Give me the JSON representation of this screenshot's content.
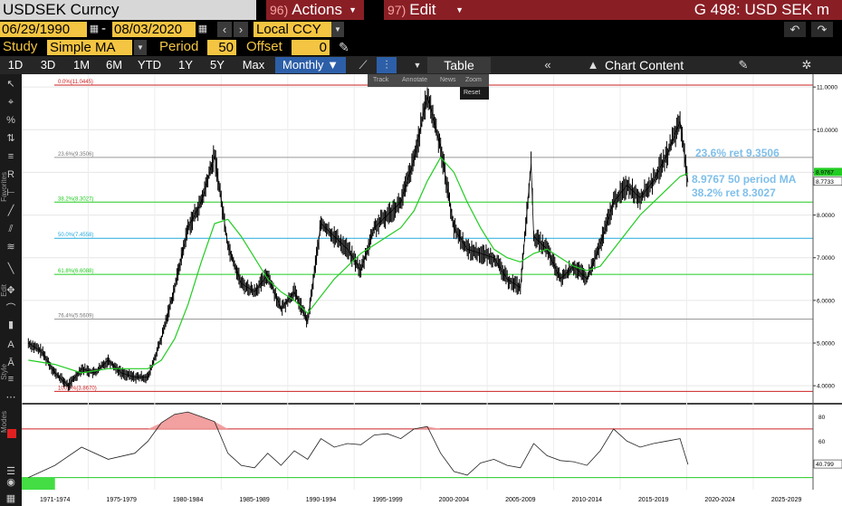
{
  "header": {
    "ticker": "USDSEK Curncy",
    "actions_num": "96)",
    "actions_label": "Actions",
    "edit_num": "97)",
    "edit_label": "Edit",
    "function_title": "G 498: USD SEK m"
  },
  "dates": {
    "start": "06/29/1990",
    "end": "08/03/2020",
    "currency": "Local CCY"
  },
  "study": {
    "label": "Study",
    "value": "Simple MA",
    "period_label": "Period",
    "period_value": "50",
    "offset_label": "Offset",
    "offset_value": "0"
  },
  "toolbar": {
    "periods": [
      "1D",
      "3D",
      "1M",
      "6M",
      "YTD",
      "1Y",
      "5Y",
      "Max"
    ],
    "frequency": "Monthly ▼",
    "table_label": "Table",
    "chart_content_label": "Chart Content"
  },
  "float_toolbar": {
    "track": "Track",
    "annotate": "Annotate",
    "news": "News",
    "zoom": "Zoom",
    "reset": "Reset"
  },
  "left_labels": {
    "favorites": "Favorites",
    "edit": "Edit",
    "style": "Style",
    "modes": "Modes"
  },
  "annotations": {
    "ret236": "23.6% ret 9.3506",
    "ma50": "8.9767 50 period MA",
    "ret382": "38.2% ret 8.3027"
  },
  "colors": {
    "price": "#000000",
    "ma": "#22cc22",
    "fib_0": "#cc2222",
    "fib_382": "#22cc22",
    "fib_50": "#22aadd",
    "fib_618": "#22cc22",
    "fib_100": "#cc2222",
    "annotation": "#7fbfea"
  },
  "chart_data": {
    "type": "line",
    "ylim": [
      3.6,
      11.3
    ],
    "yticks": [
      "11.0000",
      "10.0000",
      "9.0000",
      "8.0000",
      "7.0000",
      "6.0000",
      "5.0000",
      "4.0000"
    ],
    "ytick_values": [
      11,
      10,
      9,
      8,
      7,
      6,
      5,
      4
    ],
    "x_labels": [
      "1971-1974",
      "1975-1979",
      "1980-1984",
      "1985-1989",
      "1990-1994",
      "1995-1999",
      "2000-2004",
      "2005-2009",
      "2010-2014",
      "2015-2019",
      "2020-2024",
      "2025-2029"
    ],
    "last_price_label": "8.9767",
    "last_value_label": "8.7733",
    "fib_levels": [
      {
        "label": "0.0%(11.0445)",
        "value": 11.0445,
        "color": "#cc2222"
      },
      {
        "label": "23.6%(9.3506)",
        "value": 9.3506,
        "color": "#999999"
      },
      {
        "label": "38.2%(8.3027)",
        "value": 8.3027,
        "color": "#22cc22"
      },
      {
        "label": "50.0%(7.4558)",
        "value": 7.4558,
        "color": "#22aadd"
      },
      {
        "label": "61.8%(6.6088)",
        "value": 6.6088,
        "color": "#22cc22"
      },
      {
        "label": "76.4%(5.5609)",
        "value": 5.5609,
        "color": "#999999"
      },
      {
        "label": "100.0%(3.8670)",
        "value": 3.867,
        "color": "#cc2222"
      }
    ],
    "price_series": {
      "name": "USDSEK",
      "x": [
        1971,
        1972,
        1973,
        1974,
        1975,
        1976,
        1977,
        1978,
        1979,
        1980,
        1981,
        1982,
        1983,
        1984,
        1985,
        1986,
        1987,
        1988,
        1989,
        1990,
        1991,
        1992,
        1993,
        1994,
        1995,
        1996,
        1997,
        1998,
        1999,
        2000,
        2001,
        2002,
        2003,
        2004,
        2005,
        2006,
        2007,
        2008,
        2008.8,
        2009,
        2010,
        2011,
        2012,
        2013,
        2014,
        2015,
        2016,
        2017,
        2018,
        2019,
        2020,
        2020.6
      ],
      "y": [
        5.0,
        4.8,
        4.3,
        4.0,
        4.4,
        4.3,
        4.6,
        4.3,
        4.2,
        4.2,
        5.1,
        6.3,
        7.7,
        8.3,
        9.4,
        7.3,
        6.4,
        6.2,
        6.6,
        5.8,
        6.2,
        5.5,
        7.8,
        7.5,
        7.2,
        6.7,
        7.7,
        8.0,
        8.3,
        9.3,
        10.8,
        9.6,
        7.7,
        7.2,
        7.1,
        7.0,
        6.5,
        6.3,
        9.2,
        7.5,
        7.2,
        6.5,
        6.8,
        6.5,
        7.3,
        8.3,
        8.7,
        8.4,
        8.8,
        9.4,
        10.2,
        8.77
      ]
    },
    "ma_series": {
      "name": "50 period MA",
      "x": [
        1971,
        1973,
        1975,
        1977,
        1979,
        1980,
        1981,
        1982,
        1983,
        1984,
        1985,
        1986,
        1987,
        1988,
        1989,
        1990,
        1991,
        1992,
        1993,
        1994,
        1995,
        1996,
        1997,
        1998,
        1999,
        2000,
        2001,
        2002,
        2003,
        2004,
        2005,
        2006,
        2007,
        2008,
        2009,
        2010,
        2011,
        2012,
        2013,
        2014,
        2015,
        2016,
        2017,
        2018,
        2019,
        2020,
        2020.6
      ],
      "y": [
        4.6,
        4.5,
        4.3,
        4.4,
        4.4,
        4.4,
        4.6,
        5.1,
        5.9,
        6.9,
        7.8,
        7.9,
        7.5,
        7.0,
        6.5,
        6.2,
        6.0,
        5.7,
        6.1,
        6.5,
        6.8,
        7.1,
        7.3,
        7.5,
        7.7,
        8.1,
        8.8,
        9.35,
        9.0,
        8.3,
        7.7,
        7.2,
        7.0,
        6.9,
        7.1,
        7.2,
        7.0,
        6.8,
        6.7,
        6.8,
        7.2,
        7.6,
        8.0,
        8.3,
        8.6,
        8.9,
        8.98
      ]
    },
    "rsi_series": {
      "yticks": [
        "80",
        "60",
        "40.799"
      ],
      "ylim": [
        20,
        90
      ],
      "levels": [
        70,
        30
      ],
      "last_value": 40.799,
      "x": [
        1971,
        1973,
        1975,
        1977,
        1979,
        1980,
        1981,
        1982,
        1983,
        1984,
        1985,
        1986,
        1987,
        1988,
        1989,
        1990,
        1991,
        1992,
        1993,
        1994,
        1995,
        1996,
        1997,
        1998,
        1999,
        2000,
        2001,
        2002,
        2003,
        2004,
        2005,
        2006,
        2007,
        2008,
        2009,
        2010,
        2011,
        2012,
        2013,
        2014,
        2015,
        2016,
        2017,
        2018,
        2019,
        2020,
        2020.6
      ],
      "y": [
        30,
        40,
        55,
        45,
        50,
        60,
        75,
        82,
        84,
        80,
        76,
        50,
        40,
        38,
        50,
        40,
        52,
        45,
        62,
        55,
        58,
        57,
        65,
        66,
        62,
        70,
        72,
        50,
        35,
        32,
        42,
        45,
        40,
        38,
        58,
        48,
        44,
        43,
        40,
        52,
        70,
        60,
        55,
        58,
        60,
        62,
        40.8
      ]
    },
    "xlim": [
      1970.5,
      2030
    ]
  }
}
